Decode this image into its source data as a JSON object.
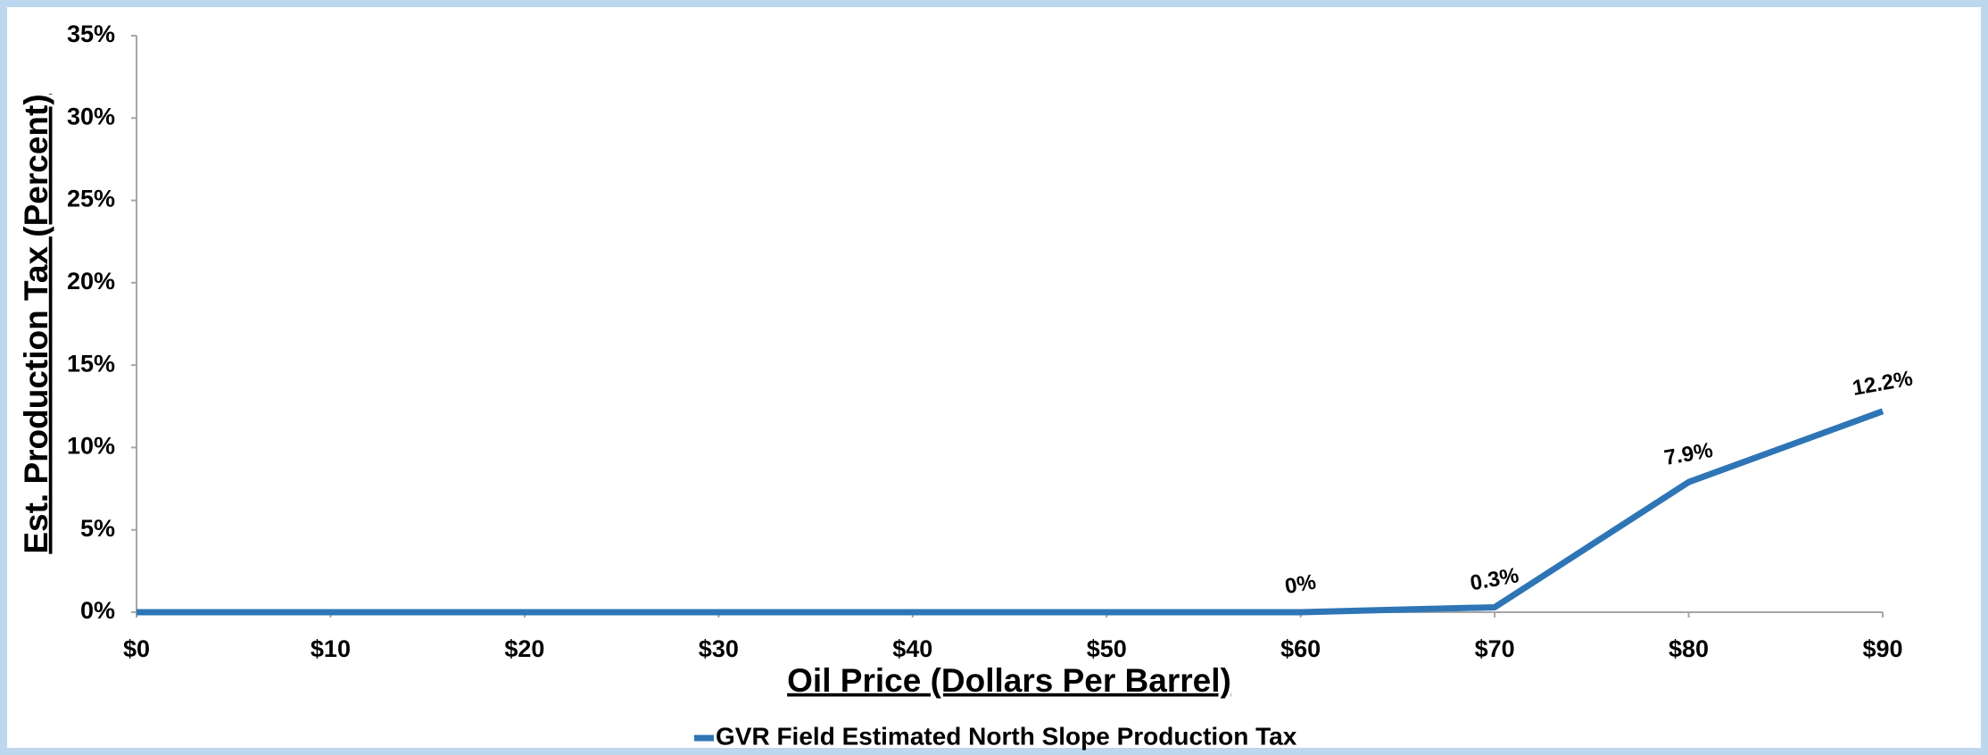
{
  "chart_data": {
    "type": "line",
    "x_label": "Oil Price (Dollars Per Barrel)",
    "y_label": "Est. Production Tax (Percent)",
    "x": [
      0,
      10,
      20,
      30,
      40,
      50,
      60,
      70,
      80,
      90
    ],
    "series": [
      {
        "name": "GVR Field Estimated North Slope Production Tax",
        "color": "#2e75b6",
        "values": [
          0,
          0,
          0,
          0,
          0,
          0,
          0,
          0.3,
          7.9,
          12.2
        ],
        "value_labels": [
          null,
          null,
          null,
          null,
          null,
          null,
          "0%",
          "0.3%",
          "7.9%",
          "12.2%"
        ]
      }
    ],
    "xlim": [
      0,
      90
    ],
    "xticks": [
      {
        "value": 0,
        "label": "$0"
      },
      {
        "value": 10,
        "label": "$10"
      },
      {
        "value": 20,
        "label": "$20"
      },
      {
        "value": 30,
        "label": "$30"
      },
      {
        "value": 40,
        "label": "$40"
      },
      {
        "value": 50,
        "label": "$50"
      },
      {
        "value": 60,
        "label": "$60"
      },
      {
        "value": 70,
        "label": "$70"
      },
      {
        "value": 80,
        "label": "$80"
      },
      {
        "value": 90,
        "label": "$90"
      }
    ],
    "ylim": [
      0,
      35
    ],
    "yticks": [
      {
        "value": 0,
        "label": "0%"
      },
      {
        "value": 5,
        "label": "5%"
      },
      {
        "value": 10,
        "label": "10%"
      },
      {
        "value": 15,
        "label": "15%"
      },
      {
        "value": 20,
        "label": "20%"
      },
      {
        "value": 25,
        "label": "25%"
      },
      {
        "value": 30,
        "label": "30%"
      },
      {
        "value": 35,
        "label": "35%"
      }
    ],
    "grid": false,
    "legend": "bottom"
  }
}
